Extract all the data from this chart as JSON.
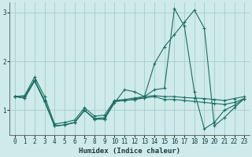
{
  "xlabel": "Humidex (Indice chaleur)",
  "bg_color": "#ceeaea",
  "grid_color": "#a8cccc",
  "line_color": "#1a6e62",
  "xlim": [
    -0.5,
    23.5
  ],
  "ylim": [
    0.5,
    3.2
  ],
  "yticks": [
    1,
    2,
    3
  ],
  "xticks": [
    0,
    1,
    2,
    3,
    4,
    5,
    6,
    7,
    8,
    9,
    10,
    11,
    12,
    13,
    14,
    15,
    16,
    17,
    18,
    19,
    20,
    21,
    22,
    23
  ],
  "series": [
    [
      1.28,
      1.3,
      1.68,
      1.28,
      0.72,
      0.75,
      0.8,
      1.05,
      0.88,
      0.9,
      1.2,
      1.22,
      1.25,
      1.28,
      1.3,
      1.28,
      1.28,
      1.26,
      1.25,
      1.24,
      1.22,
      1.2,
      1.24,
      1.28
    ],
    [
      1.28,
      1.28,
      1.62,
      1.2,
      0.68,
      0.7,
      0.75,
      1.0,
      0.83,
      0.85,
      1.18,
      1.2,
      1.22,
      1.25,
      1.28,
      1.22,
      1.22,
      1.2,
      1.18,
      1.16,
      1.14,
      1.12,
      1.16,
      1.24
    ],
    [
      1.28,
      1.25,
      1.6,
      1.18,
      0.68,
      0.7,
      0.75,
      1.0,
      0.82,
      0.82,
      1.15,
      1.42,
      1.38,
      1.28,
      1.95,
      2.3,
      2.55,
      2.8,
      3.05,
      2.68,
      0.68,
      0.85,
      1.05,
      1.24
    ],
    [
      1.28,
      1.25,
      1.6,
      1.18,
      0.68,
      0.7,
      0.75,
      1.0,
      0.82,
      0.82,
      1.18,
      1.2,
      1.22,
      1.28,
      1.42,
      1.45,
      3.08,
      2.72,
      1.38,
      0.62,
      0.75,
      1.0,
      1.1,
      1.24
    ]
  ]
}
